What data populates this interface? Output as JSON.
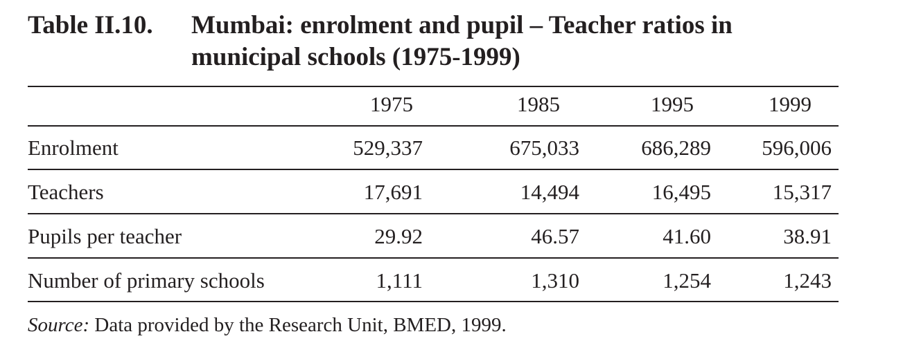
{
  "table": {
    "label": "Table II.10.",
    "title": "Mumbai: enrolment and pupil – Teacher ratios in municipal schools (1975-1999)",
    "columns": [
      "1975",
      "1985",
      "1995",
      "1999"
    ],
    "rows": [
      {
        "label": "Enrolment",
        "values": [
          "529,337",
          "675,033",
          "686,289",
          "596,006"
        ]
      },
      {
        "label": "Teachers",
        "values": [
          "17,691",
          "14,494",
          "16,495",
          "15,317"
        ]
      },
      {
        "label": "Pupils per teacher",
        "values": [
          "29.92",
          "46.57",
          "41.60",
          "38.91"
        ]
      },
      {
        "label": "Number of primary schools",
        "values": [
          "1,111",
          "1,310",
          "1,254",
          "1,243"
        ]
      }
    ]
  },
  "source": {
    "label": "Source:",
    "text": " Data provided by the Research Unit, BMED, 1999."
  }
}
